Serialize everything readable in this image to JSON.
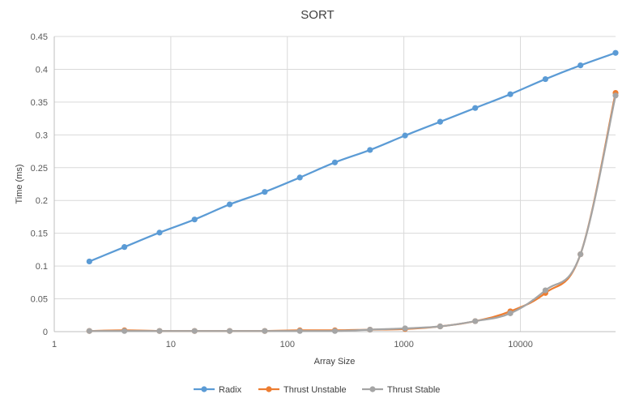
{
  "chart_data": {
    "type": "line",
    "title": "SORT",
    "xlabel": "Array Size",
    "ylabel": "Time (ms)",
    "x_scale": "log10",
    "xlim": [
      1,
      65536
    ],
    "ylim": [
      0,
      0.45
    ],
    "y_ticks": [
      "0",
      "0.05",
      "0.1",
      "0.15",
      "0.2",
      "0.25",
      "0.3",
      "0.35",
      "0.4",
      "0.45"
    ],
    "y_tick_values": [
      0,
      0.05,
      0.1,
      0.15,
      0.2,
      0.25,
      0.3,
      0.35,
      0.4,
      0.45
    ],
    "x_ticks": [
      "1",
      "10",
      "100",
      "1000",
      "10000"
    ],
    "x_tick_values": [
      1,
      10,
      100,
      1000,
      10000
    ],
    "grid": true,
    "legend_position": "bottom",
    "x": [
      2,
      4,
      8,
      16,
      32,
      64,
      128,
      256,
      512,
      1024,
      2048,
      4096,
      8192,
      16384,
      32768,
      65536
    ],
    "series": [
      {
        "name": "Radix",
        "color": "#5b9bd5",
        "values": [
          0.107,
          0.129,
          0.151,
          0.171,
          0.194,
          0.213,
          0.235,
          0.258,
          0.277,
          0.299,
          0.32,
          0.341,
          0.362,
          0.385,
          0.406,
          0.425
        ]
      },
      {
        "name": "Thrust Unstable",
        "color": "#ed7d31",
        "values": [
          0.001,
          0.002,
          0.001,
          0.001,
          0.001,
          0.001,
          0.002,
          0.002,
          0.003,
          0.004,
          0.008,
          0.016,
          0.031,
          0.059,
          0.118,
          0.364
        ]
      },
      {
        "name": "Thrust Stable",
        "color": "#a5a5a5",
        "values": [
          0.001,
          0.001,
          0.001,
          0.001,
          0.001,
          0.001,
          0.001,
          0.001,
          0.003,
          0.005,
          0.008,
          0.016,
          0.028,
          0.063,
          0.118,
          0.36
        ]
      }
    ]
  }
}
